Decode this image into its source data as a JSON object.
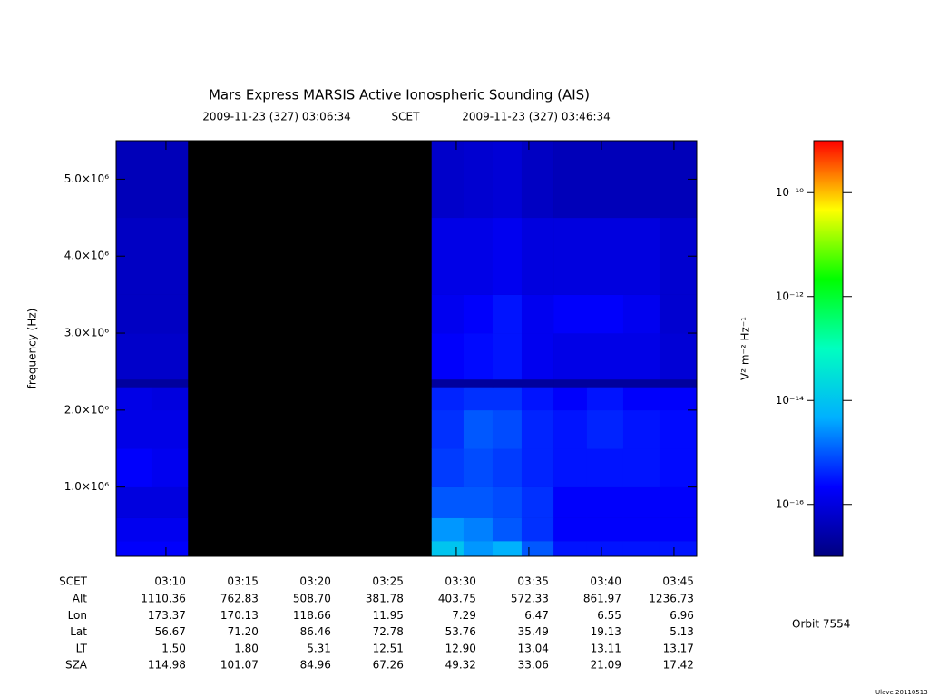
{
  "chart_data": {
    "type": "spectrogram",
    "title": "Mars Express MARSIS Active Ionospheric Sounding (AIS)",
    "subtitle_start": "2009-11-23 (327) 03:06:34",
    "subtitle_mid": "SCET",
    "subtitle_end": "2009-11-23 (327) 03:46:34",
    "ylabel": "frequency (Hz)",
    "zlabel": "V² m⁻² Hz⁻¹",
    "xlabel": "SCET",
    "xlim": [
      6.5667,
      46.5667
    ],
    "xticks": [
      {
        "value": 10,
        "label": "03:10"
      },
      {
        "value": 15,
        "label": "03:15"
      },
      {
        "value": 20,
        "label": "03:20"
      },
      {
        "value": 25,
        "label": "03:25"
      },
      {
        "value": 30,
        "label": "03:30"
      },
      {
        "value": 35,
        "label": "03:35"
      },
      {
        "value": 40,
        "label": "03:40"
      },
      {
        "value": 45,
        "label": "03:45"
      }
    ],
    "ylim": [
      100000,
      5500000
    ],
    "yticks": [
      {
        "value": 1000000,
        "label": "1.0×10⁶"
      },
      {
        "value": 2000000,
        "label": "2.0×10⁶"
      },
      {
        "value": 3000000,
        "label": "3.0×10⁶"
      },
      {
        "value": 4000000,
        "label": "4.0×10⁶"
      },
      {
        "value": 5000000,
        "label": "5.0×10⁶"
      }
    ],
    "zlim": [
      1e-17,
      1e-09
    ],
    "zscale": "log",
    "zticks": [
      {
        "value": 1e-16,
        "label": "10⁻¹⁶"
      },
      {
        "value": 1e-14,
        "label": "10⁻¹⁴"
      },
      {
        "value": 1e-12,
        "label": "10⁻¹²"
      },
      {
        "value": 1e-10,
        "label": "10⁻¹⁰"
      }
    ],
    "colormap": [
      "#000080",
      "#0000ff",
      "#00b0ff",
      "#00ffc0",
      "#00ff00",
      "#ffff00",
      "#ff0000"
    ],
    "x_edges": [
      6.5667,
      9,
      11.5,
      28.3,
      30.5,
      32.5,
      34.5,
      36.7,
      39,
      41.5,
      44,
      46.5667
    ],
    "y_edges": [
      100000,
      300000,
      600000,
      1000000,
      1500000,
      2000000,
      2300000,
      2400000,
      3000000,
      3500000,
      4500000,
      5500000
    ],
    "z": [
      [
        2e-16,
        2e-16,
        null,
        1e-14,
        3e-15,
        5e-15,
        1e-15,
        3e-16,
        3e-16,
        3e-16,
        3e-16
      ],
      [
        1.5e-16,
        1.5e-16,
        null,
        3e-15,
        2e-15,
        1e-15,
        5e-16,
        2e-16,
        2e-16,
        2e-16,
        2e-16
      ],
      [
        1e-16,
        1e-16,
        null,
        1e-15,
        1e-15,
        8e-16,
        5e-16,
        2e-16,
        2e-16,
        2e-16,
        2e-16
      ],
      [
        2e-16,
        1.5e-16,
        null,
        6e-16,
        8e-16,
        6e-16,
        4e-16,
        3e-16,
        3e-16,
        3e-16,
        2.5e-16
      ],
      [
        1.2e-16,
        1.2e-16,
        null,
        5e-16,
        1e-15,
        8e-16,
        4e-16,
        3e-16,
        4e-16,
        3e-16,
        2.5e-16
      ],
      [
        1.2e-16,
        1e-16,
        null,
        4e-16,
        5e-16,
        5e-16,
        3e-16,
        2e-16,
        3e-16,
        2e-16,
        2e-16
      ],
      [
        2e-17,
        2e-17,
        null,
        2e-17,
        2e-17,
        2e-17,
        2e-17,
        2e-17,
        2e-17,
        2e-17,
        2e-17
      ],
      [
        6e-17,
        6e-17,
        null,
        2e-16,
        2.5e-16,
        3e-16,
        1.5e-16,
        1.2e-16,
        1.2e-16,
        1.2e-16,
        8e-17
      ],
      [
        5e-17,
        5e-17,
        null,
        1.5e-16,
        2e-16,
        3e-16,
        1.5e-16,
        2e-16,
        2e-16,
        1.5e-16,
        7e-17
      ],
      [
        5e-17,
        5e-17,
        null,
        1.2e-16,
        1.2e-16,
        1.5e-16,
        1e-16,
        1e-16,
        1e-16,
        1e-16,
        7e-17
      ],
      [
        4e-17,
        4e-17,
        null,
        6e-17,
        7e-17,
        8e-17,
        5e-17,
        4e-17,
        4e-17,
        4e-17,
        4e-17
      ]
    ],
    "ephemeris": [
      {
        "name": "Alt",
        "values": [
          "1110.36",
          "762.83",
          "508.70",
          "381.78",
          "403.75",
          "572.33",
          "861.97",
          "1236.73"
        ]
      },
      {
        "name": "Lon",
        "values": [
          "173.37",
          "170.13",
          "118.66",
          "11.95",
          "7.29",
          "6.47",
          "6.55",
          "6.96"
        ]
      },
      {
        "name": "Lat",
        "values": [
          "56.67",
          "71.20",
          "86.46",
          "72.78",
          "53.76",
          "35.49",
          "19.13",
          "5.13"
        ]
      },
      {
        "name": "LT",
        "values": [
          "1.50",
          "1.80",
          "5.31",
          "12.51",
          "12.90",
          "13.04",
          "13.11",
          "13.17"
        ]
      },
      {
        "name": "SZA",
        "values": [
          "114.98",
          "101.07",
          "84.96",
          "67.26",
          "49.32",
          "33.06",
          "21.09",
          "17.42"
        ]
      }
    ],
    "orbit": "Orbit 7554",
    "stamp": "Ulave 20110513"
  }
}
